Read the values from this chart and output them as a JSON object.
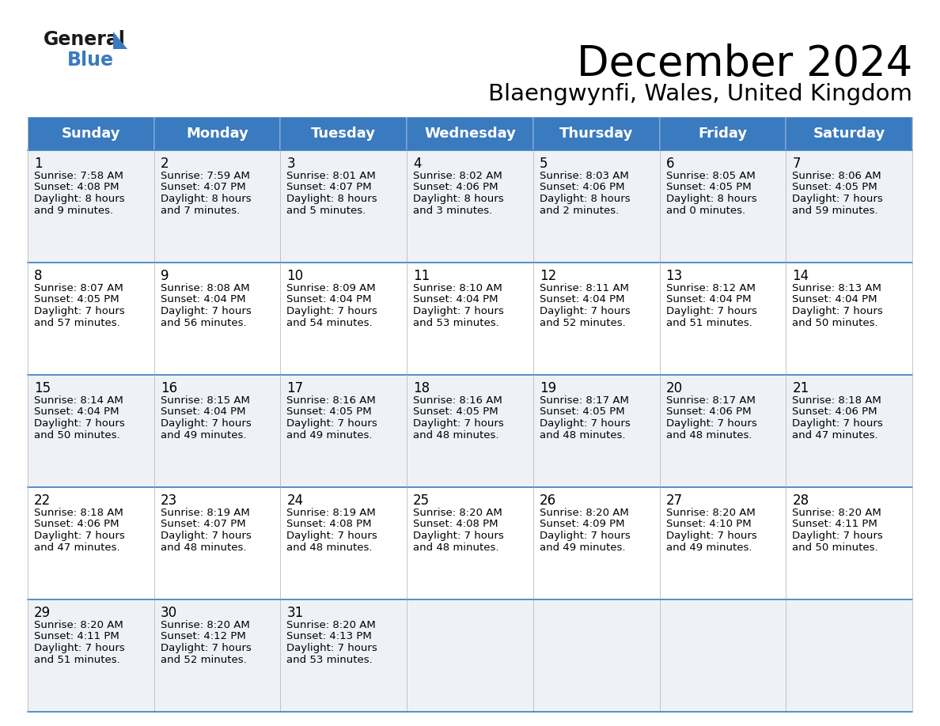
{
  "title": "December 2024",
  "subtitle": "Blaengwynfi, Wales, United Kingdom",
  "header_bg": "#3a7abf",
  "header_text_color": "#ffffff",
  "row_bg_light": "#eef2f7",
  "row_bg_white": "#ffffff",
  "day_names": [
    "Sunday",
    "Monday",
    "Tuesday",
    "Wednesday",
    "Thursday",
    "Friday",
    "Saturday"
  ],
  "calendar": [
    [
      {
        "day": 1,
        "sunrise": "7:58 AM",
        "sunset": "4:08 PM",
        "daylight_h": "8 hours",
        "daylight_m": "and 9 minutes."
      },
      {
        "day": 2,
        "sunrise": "7:59 AM",
        "sunset": "4:07 PM",
        "daylight_h": "8 hours",
        "daylight_m": "and 7 minutes."
      },
      {
        "day": 3,
        "sunrise": "8:01 AM",
        "sunset": "4:07 PM",
        "daylight_h": "8 hours",
        "daylight_m": "and 5 minutes."
      },
      {
        "day": 4,
        "sunrise": "8:02 AM",
        "sunset": "4:06 PM",
        "daylight_h": "8 hours",
        "daylight_m": "and 3 minutes."
      },
      {
        "day": 5,
        "sunrise": "8:03 AM",
        "sunset": "4:06 PM",
        "daylight_h": "8 hours",
        "daylight_m": "and 2 minutes."
      },
      {
        "day": 6,
        "sunrise": "8:05 AM",
        "sunset": "4:05 PM",
        "daylight_h": "8 hours",
        "daylight_m": "and 0 minutes."
      },
      {
        "day": 7,
        "sunrise": "8:06 AM",
        "sunset": "4:05 PM",
        "daylight_h": "7 hours",
        "daylight_m": "and 59 minutes."
      }
    ],
    [
      {
        "day": 8,
        "sunrise": "8:07 AM",
        "sunset": "4:05 PM",
        "daylight_h": "7 hours",
        "daylight_m": "and 57 minutes."
      },
      {
        "day": 9,
        "sunrise": "8:08 AM",
        "sunset": "4:04 PM",
        "daylight_h": "7 hours",
        "daylight_m": "and 56 minutes."
      },
      {
        "day": 10,
        "sunrise": "8:09 AM",
        "sunset": "4:04 PM",
        "daylight_h": "7 hours",
        "daylight_m": "and 54 minutes."
      },
      {
        "day": 11,
        "sunrise": "8:10 AM",
        "sunset": "4:04 PM",
        "daylight_h": "7 hours",
        "daylight_m": "and 53 minutes."
      },
      {
        "day": 12,
        "sunrise": "8:11 AM",
        "sunset": "4:04 PM",
        "daylight_h": "7 hours",
        "daylight_m": "and 52 minutes."
      },
      {
        "day": 13,
        "sunrise": "8:12 AM",
        "sunset": "4:04 PM",
        "daylight_h": "7 hours",
        "daylight_m": "and 51 minutes."
      },
      {
        "day": 14,
        "sunrise": "8:13 AM",
        "sunset": "4:04 PM",
        "daylight_h": "7 hours",
        "daylight_m": "and 50 minutes."
      }
    ],
    [
      {
        "day": 15,
        "sunrise": "8:14 AM",
        "sunset": "4:04 PM",
        "daylight_h": "7 hours",
        "daylight_m": "and 50 minutes."
      },
      {
        "day": 16,
        "sunrise": "8:15 AM",
        "sunset": "4:04 PM",
        "daylight_h": "7 hours",
        "daylight_m": "and 49 minutes."
      },
      {
        "day": 17,
        "sunrise": "8:16 AM",
        "sunset": "4:05 PM",
        "daylight_h": "7 hours",
        "daylight_m": "and 49 minutes."
      },
      {
        "day": 18,
        "sunrise": "8:16 AM",
        "sunset": "4:05 PM",
        "daylight_h": "7 hours",
        "daylight_m": "and 48 minutes."
      },
      {
        "day": 19,
        "sunrise": "8:17 AM",
        "sunset": "4:05 PM",
        "daylight_h": "7 hours",
        "daylight_m": "and 48 minutes."
      },
      {
        "day": 20,
        "sunrise": "8:17 AM",
        "sunset": "4:06 PM",
        "daylight_h": "7 hours",
        "daylight_m": "and 48 minutes."
      },
      {
        "day": 21,
        "sunrise": "8:18 AM",
        "sunset": "4:06 PM",
        "daylight_h": "7 hours",
        "daylight_m": "and 47 minutes."
      }
    ],
    [
      {
        "day": 22,
        "sunrise": "8:18 AM",
        "sunset": "4:06 PM",
        "daylight_h": "7 hours",
        "daylight_m": "and 47 minutes."
      },
      {
        "day": 23,
        "sunrise": "8:19 AM",
        "sunset": "4:07 PM",
        "daylight_h": "7 hours",
        "daylight_m": "and 48 minutes."
      },
      {
        "day": 24,
        "sunrise": "8:19 AM",
        "sunset": "4:08 PM",
        "daylight_h": "7 hours",
        "daylight_m": "and 48 minutes."
      },
      {
        "day": 25,
        "sunrise": "8:20 AM",
        "sunset": "4:08 PM",
        "daylight_h": "7 hours",
        "daylight_m": "and 48 minutes."
      },
      {
        "day": 26,
        "sunrise": "8:20 AM",
        "sunset": "4:09 PM",
        "daylight_h": "7 hours",
        "daylight_m": "and 49 minutes."
      },
      {
        "day": 27,
        "sunrise": "8:20 AM",
        "sunset": "4:10 PM",
        "daylight_h": "7 hours",
        "daylight_m": "and 49 minutes."
      },
      {
        "day": 28,
        "sunrise": "8:20 AM",
        "sunset": "4:11 PM",
        "daylight_h": "7 hours",
        "daylight_m": "and 50 minutes."
      }
    ],
    [
      {
        "day": 29,
        "sunrise": "8:20 AM",
        "sunset": "4:11 PM",
        "daylight_h": "7 hours",
        "daylight_m": "and 51 minutes."
      },
      {
        "day": 30,
        "sunrise": "8:20 AM",
        "sunset": "4:12 PM",
        "daylight_h": "7 hours",
        "daylight_m": "and 52 minutes."
      },
      {
        "day": 31,
        "sunrise": "8:20 AM",
        "sunset": "4:13 PM",
        "daylight_h": "7 hours",
        "daylight_m": "and 53 minutes."
      },
      null,
      null,
      null,
      null
    ]
  ],
  "title_fontsize": 38,
  "subtitle_fontsize": 21,
  "header_fontsize": 13,
  "day_num_fontsize": 12,
  "cell_text_fontsize": 9.5,
  "logo_general_fontsize": 17,
  "logo_blue_fontsize": 17,
  "divider_color": "#3a7abf",
  "cell_border_color": "#bbbbbb",
  "logo_general_color": "#1a1a1a",
  "logo_blue_color": "#3a7abf",
  "logo_triangle_color": "#3a7abf"
}
